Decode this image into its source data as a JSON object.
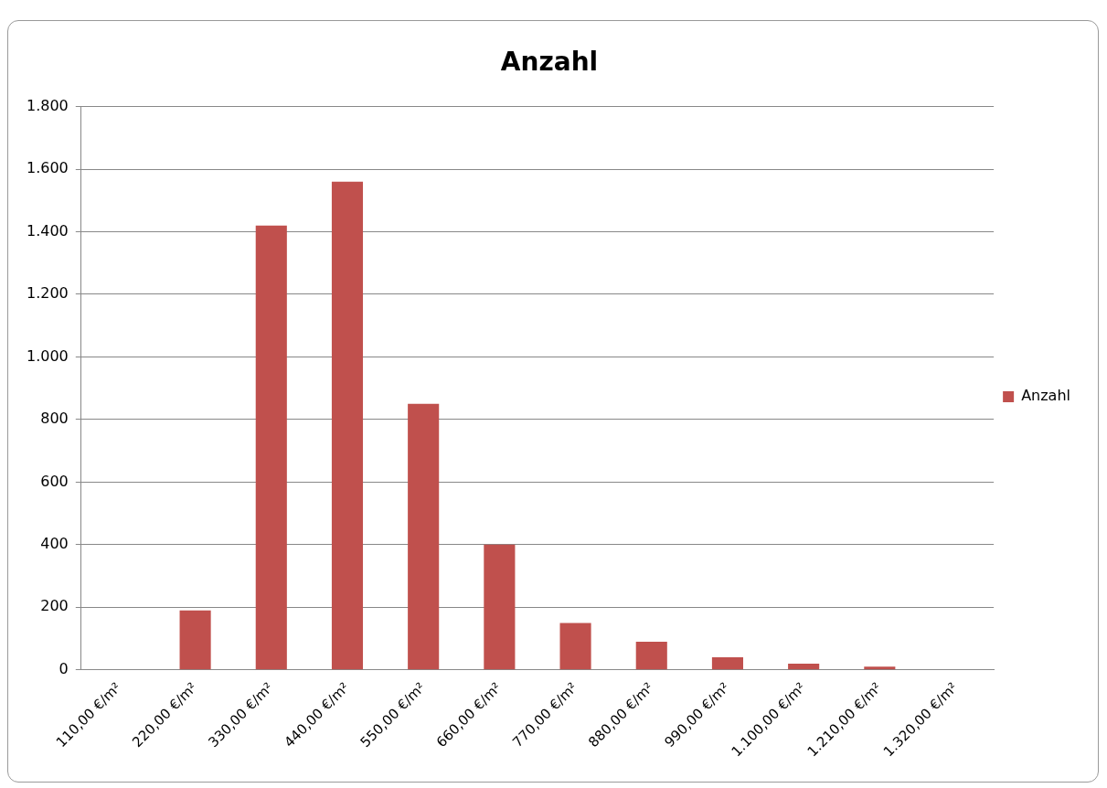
{
  "chart_data": {
    "type": "bar",
    "title": "Anzahl",
    "categories": [
      "110,00 €/m²",
      "220,00 €/m²",
      "330,00 €/m²",
      "440,00 €/m²",
      "550,00 €/m²",
      "660,00 €/m²",
      "770,00 €/m²",
      "880,00 €/m²",
      "990,00 €/m²",
      "1.100,00 €/m²",
      "1.210,00 €/m²",
      "1.320,00 €/m²"
    ],
    "series": [
      {
        "name": "Anzahl",
        "color": "#c0504d",
        "values": [
          0,
          190,
          1420,
          1560,
          850,
          400,
          150,
          90,
          40,
          20,
          10,
          0
        ]
      }
    ],
    "ylim": [
      0,
      1800
    ],
    "yticks": [
      {
        "value": 0,
        "label": "0"
      },
      {
        "value": 200,
        "label": "200"
      },
      {
        "value": 400,
        "label": "400"
      },
      {
        "value": 600,
        "label": "600"
      },
      {
        "value": 800,
        "label": "800"
      },
      {
        "value": 1000,
        "label": "1.000"
      },
      {
        "value": 1200,
        "label": "1.200"
      },
      {
        "value": 1400,
        "label": "1.400"
      },
      {
        "value": 1600,
        "label": "1.600"
      },
      {
        "value": 1800,
        "label": "1.800"
      }
    ],
    "grid": "y",
    "legend": "right"
  }
}
